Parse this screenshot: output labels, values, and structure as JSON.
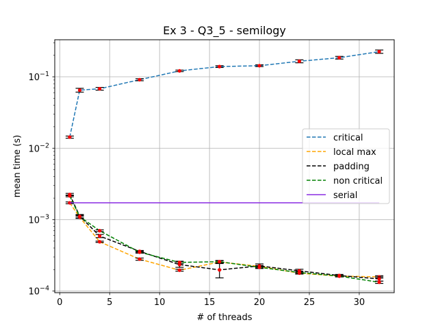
{
  "chart_data": {
    "type": "line",
    "title": "Ex 3 - Q3_5 - semilogy",
    "xlabel": "# of threads",
    "ylabel": "mean time (s)",
    "xlim": [
      -0.5,
      33.5
    ],
    "ylim": [
      9.5e-05,
      0.33
    ],
    "yscale": "log",
    "grid": true,
    "legend_position": "center-right",
    "x_ticks": [
      {
        "value": 0,
        "label": "0"
      },
      {
        "value": 5,
        "label": "5"
      },
      {
        "value": 10,
        "label": "10"
      },
      {
        "value": 15,
        "label": "15"
      },
      {
        "value": 20,
        "label": "20"
      },
      {
        "value": 25,
        "label": "25"
      },
      {
        "value": 30,
        "label": "30"
      }
    ],
    "y_ticks": [
      {
        "value": 0.0001,
        "base": "10",
        "exp": "−4"
      },
      {
        "value": 0.001,
        "base": "10",
        "exp": "−3"
      },
      {
        "value": 0.01,
        "base": "10",
        "exp": "−2"
      },
      {
        "value": 0.1,
        "base": "10",
        "exp": "−1"
      }
    ],
    "x": [
      1,
      2,
      4,
      8,
      12,
      16,
      20,
      24,
      28,
      32
    ],
    "series": [
      {
        "name": "critical",
        "color": "#1f77b4",
        "style": "dashed",
        "values": [
          0.0143,
          0.065,
          0.068,
          0.091,
          0.121,
          0.139,
          0.143,
          0.165,
          0.185,
          0.225
        ],
        "err": [
          0.0005,
          0.004,
          0.003,
          0.003,
          0.003,
          0.004,
          0.004,
          0.008,
          0.008,
          0.012
        ]
      },
      {
        "name": "local max",
        "color": "#ffa500",
        "style": "dashed",
        "values": [
          0.00172,
          0.00108,
          0.00049,
          0.00028,
          0.000196,
          0.000255,
          0.000222,
          0.000178,
          0.000162,
          0.000158
        ],
        "err": [
          5e-05,
          4e-05,
          1e-05,
          1e-05,
          6e-06,
          1e-05,
          6e-06,
          5e-06,
          4e-06,
          6e-06
        ]
      },
      {
        "name": "padding",
        "color": "#000000",
        "style": "dashed",
        "values": [
          0.00225,
          0.00112,
          0.00059,
          0.00036,
          0.000235,
          0.000198,
          0.000225,
          0.000192,
          0.000165,
          0.000148
        ],
        "err": [
          8e-05,
          6e-05,
          3e-05,
          1e-05,
          2e-05,
          4.5e-05,
          1.5e-05,
          1e-05,
          6e-06,
          1e-05
        ]
      },
      {
        "name": "non critical",
        "color": "#008000",
        "style": "dashed",
        "values": [
          0.00215,
          0.0011,
          0.0007,
          0.00035,
          0.000252,
          0.000258,
          0.000215,
          0.000182,
          0.000162,
          0.000133
        ],
        "err": [
          6e-05,
          5e-05,
          2e-05,
          1e-05,
          1e-05,
          1e-05,
          8e-06,
          6e-06,
          4e-06,
          5e-06
        ]
      },
      {
        "name": "serial",
        "color": "#8a2be2",
        "style": "solid",
        "x": [
          1,
          32
        ],
        "values": [
          0.00172,
          0.00172
        ]
      }
    ]
  }
}
